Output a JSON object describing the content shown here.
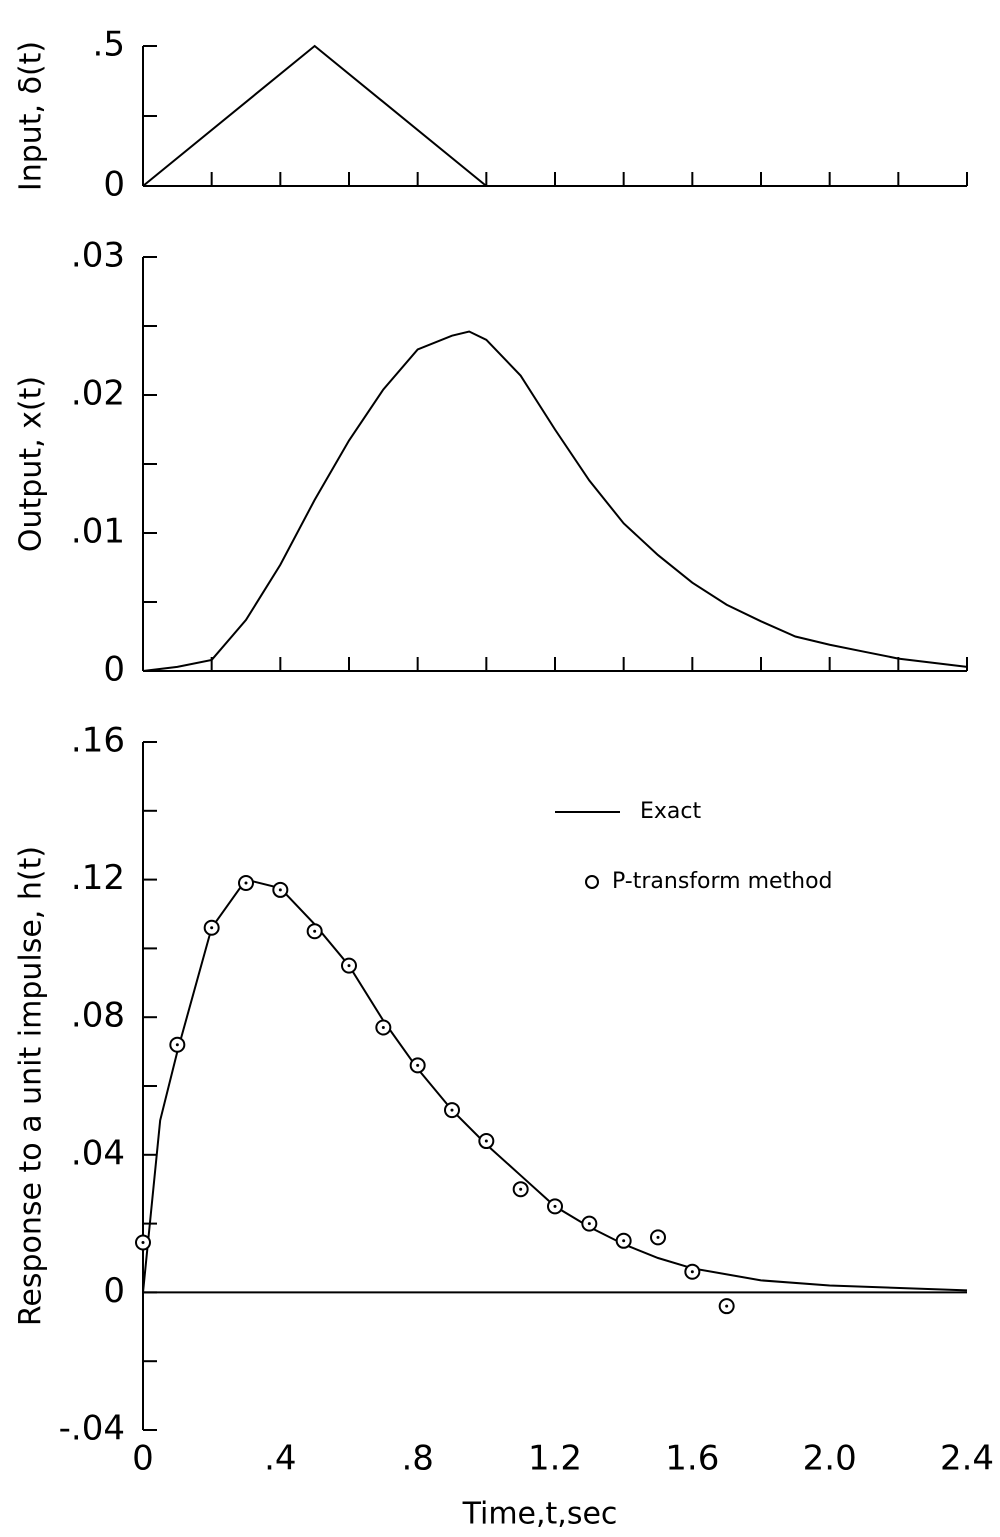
{
  "chart_data": [
    {
      "type": "line",
      "y_label": "Input, δ(t)",
      "x": [
        0,
        0.5,
        1.0
      ],
      "series": [
        {
          "color": "#000000",
          "values": [
            0,
            0.5,
            0
          ]
        }
      ],
      "xlim": [
        0,
        2.4
      ],
      "xticks": [
        0,
        0.2,
        0.4,
        0.6,
        0.8,
        1.0,
        1.2,
        1.4,
        1.6,
        1.8,
        2.0,
        2.2,
        2.4
      ],
      "xtick_labels": false,
      "ylim": [
        0,
        0.5
      ],
      "yticks": [
        0,
        {
          "value": 0.5,
          "label": ".5"
        }
      ],
      "yminorticks": [
        0.25
      ]
    },
    {
      "type": "line",
      "y_label": "Output, x(t)",
      "x": [
        0,
        0.1,
        0.2,
        0.3,
        0.4,
        0.5,
        0.6,
        0.7,
        0.8,
        0.9,
        0.95,
        1.0,
        1.1,
        1.2,
        1.3,
        1.4,
        1.5,
        1.6,
        1.7,
        1.8,
        1.9,
        2.0,
        2.1,
        2.2,
        2.3,
        2.4
      ],
      "series": [
        {
          "color": "#000000",
          "values": [
            0,
            0.0003,
            0.0008,
            0.0037,
            0.0077,
            0.0124,
            0.0167,
            0.0204,
            0.0233,
            0.0243,
            0.0246,
            0.024,
            0.0214,
            0.0175,
            0.0138,
            0.0107,
            0.0084,
            0.0064,
            0.0048,
            0.0036,
            0.0025,
            0.0019,
            0.0014,
            0.0009,
            0.0006,
            0.0003
          ]
        }
      ],
      "xlim": [
        0,
        2.4
      ],
      "xticks": [
        0,
        0.2,
        0.4,
        0.6,
        0.8,
        1.0,
        1.2,
        1.4,
        1.6,
        1.8,
        2.0,
        2.2,
        2.4
      ],
      "xtick_labels": false,
      "ylim": [
        0,
        0.03
      ],
      "yticks": [
        0,
        {
          "value": 0.01,
          "label": ".01"
        },
        {
          "value": 0.02,
          "label": ".02"
        },
        {
          "value": 0.03,
          "label": ".03"
        }
      ],
      "yminorticks": [
        0.005,
        0.015,
        0.025
      ]
    },
    {
      "type": "line",
      "y_label": "Response to a unit impulse, h(t)",
      "x_label": "Time,t,sec",
      "legend": "upper right",
      "series": [
        {
          "name": "Exact",
          "color": "#000000",
          "style": "line",
          "x": [
            0,
            0.05,
            0.1,
            0.2,
            0.3,
            0.4,
            0.5,
            0.6,
            0.7,
            0.8,
            0.9,
            1.0,
            1.1,
            1.2,
            1.3,
            1.4,
            1.5,
            1.6,
            1.8,
            2.0,
            2.4
          ],
          "values": [
            0,
            0.05,
            0.07,
            0.106,
            0.12,
            0.1175,
            0.107,
            0.095,
            0.079,
            0.065,
            0.053,
            0.043,
            0.034,
            0.025,
            0.019,
            0.014,
            0.01,
            0.007,
            0.0035,
            0.002,
            0.0006
          ]
        },
        {
          "name": "P-transform method",
          "color": "#000000",
          "style": "markers",
          "x": [
            0,
            0.1,
            0.2,
            0.3,
            0.4,
            0.5,
            0.6,
            0.7,
            0.8,
            0.9,
            1.0,
            1.1,
            1.2,
            1.3,
            1.4,
            1.5,
            1.6,
            1.7
          ],
          "values": [
            0.0145,
            0.072,
            0.106,
            0.119,
            0.117,
            0.105,
            0.095,
            0.077,
            0.066,
            0.053,
            0.044,
            0.03,
            0.025,
            0.02,
            0.015,
            0.016,
            0.006,
            -0.004
          ]
        }
      ],
      "xlim": [
        0,
        2.4
      ],
      "xtick_labels": true,
      "xticks": [
        0,
        {
          "value": 0.4,
          "label": ".4"
        },
        {
          "value": 0.8,
          "label": ".8"
        },
        1.2,
        1.6,
        {
          "value": 2.0,
          "label": "2.0"
        },
        2.4
      ],
      "ylim": [
        -0.04,
        0.16
      ],
      "yticks": [
        {
          "value": -0.04,
          "label": "-.04"
        },
        0,
        {
          "value": 0.04,
          "label": ".04"
        },
        {
          "value": 0.08,
          "label": ".08"
        },
        {
          "value": 0.12,
          "label": ".12"
        },
        {
          "value": 0.16,
          "label": ".16"
        }
      ],
      "yminorticks": [
        -0.02,
        0.02,
        0.06,
        0.1,
        0.14
      ]
    }
  ]
}
